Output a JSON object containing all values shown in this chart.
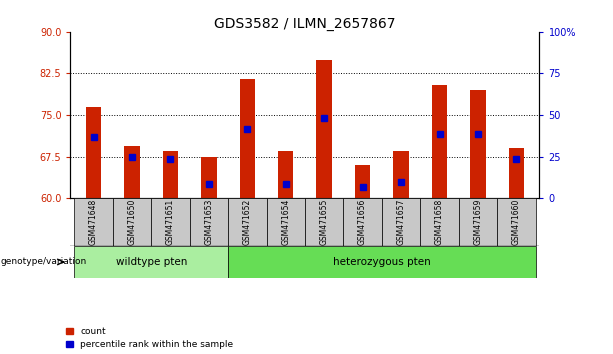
{
  "title": "GDS3582 / ILMN_2657867",
  "samples": [
    "GSM471648",
    "GSM471650",
    "GSM471651",
    "GSM471653",
    "GSM471652",
    "GSM471654",
    "GSM471655",
    "GSM471656",
    "GSM471657",
    "GSM471658",
    "GSM471659",
    "GSM471660"
  ],
  "count_values": [
    76.5,
    69.5,
    68.5,
    67.5,
    81.5,
    68.5,
    85.0,
    66.0,
    68.5,
    80.5,
    79.5,
    69.0
  ],
  "percentile_values": [
    71.0,
    67.5,
    67.0,
    62.5,
    72.5,
    62.5,
    74.5,
    62.0,
    63.0,
    71.5,
    71.5,
    67.0
  ],
  "ymin": 60,
  "ymax": 90,
  "yticks_left": [
    60,
    67.5,
    75,
    82.5,
    90
  ],
  "yticks_right": [
    0,
    25,
    50,
    75,
    100
  ],
  "wildtype_count": 4,
  "heterozygous_count": 8,
  "wildtype_label": "wildtype pten",
  "heterozygous_label": "heterozygous pten",
  "genotype_label": "genotype/variation",
  "legend_count": "count",
  "legend_percentile": "percentile rank within the sample",
  "bar_color": "#cc2200",
  "percentile_color": "#0000cc",
  "wildtype_bg": "#aaeea0",
  "heterozygous_bg": "#66dd55",
  "tick_bg": "#c8c8c8",
  "grid_color": "#000000",
  "title_fontsize": 10,
  "tick_fontsize": 7,
  "bar_width": 0.4
}
